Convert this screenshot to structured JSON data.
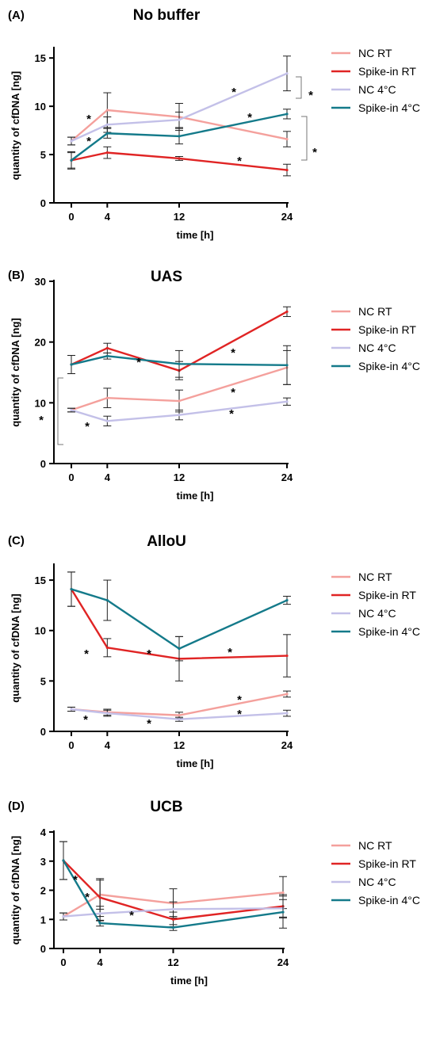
{
  "chart_data": [
    {
      "type": "line",
      "panel": "(A)",
      "title": "No buffer",
      "xlabel": "time [h]",
      "ylabel": "quantity of cfDNA [ng]",
      "x": [
        0,
        4,
        12,
        24
      ],
      "xticks": [
        "0",
        "4",
        "12",
        "24"
      ],
      "ylim": [
        0,
        16
      ],
      "yticks": [
        "0",
        "5",
        "10",
        "15"
      ],
      "grid": false,
      "legend_position": "right",
      "series": [
        {
          "name": "NC RT",
          "color": "#f4a09c",
          "values": [
            6.4,
            9.6,
            8.9,
            6.6
          ],
          "errors": [
            0.4,
            1.8,
            1.4,
            0.8
          ]
        },
        {
          "name": "Spike-in RT",
          "color": "#e02424",
          "values": [
            4.4,
            5.2,
            4.6,
            3.4
          ],
          "errors": [
            0.8,
            0.6,
            0.2,
            0.6
          ]
        },
        {
          "name": "NC 4°C",
          "color": "#c3c0e8",
          "values": [
            6.4,
            8.1,
            8.6,
            13.4
          ],
          "errors": [
            0.4,
            0.8,
            0.8,
            1.8
          ]
        },
        {
          "name": "Spike-in 4°C",
          "color": "#147a8a",
          "values": [
            4.4,
            7.2,
            6.9,
            9.2
          ],
          "errors": [
            0.9,
            0.5,
            0.8,
            0.5
          ]
        }
      ],
      "annotations": [
        "*",
        "*",
        "*",
        "*",
        "*",
        "*",
        "*"
      ]
    },
    {
      "type": "line",
      "panel": "(B)",
      "title": "UAS",
      "xlabel": "time [h]",
      "ylabel": "quantity of cfDNA [ng]",
      "x": [
        0,
        4,
        12,
        24
      ],
      "xticks": [
        "0",
        "4",
        "12",
        "24"
      ],
      "ylim": [
        0,
        30
      ],
      "yticks": [
        "0",
        "10",
        "20",
        "30"
      ],
      "grid": false,
      "legend_position": "right",
      "series": [
        {
          "name": "NC RT",
          "color": "#f4a09c",
          "values": [
            8.8,
            10.8,
            10.3,
            15.8
          ],
          "errors": [
            0.3,
            1.6,
            1.8,
            2.8
          ]
        },
        {
          "name": "Spike-in RT",
          "color": "#e02424",
          "values": [
            16.3,
            19.0,
            15.3,
            25.0
          ],
          "errors": [
            1.5,
            0.8,
            1.5,
            0.8
          ]
        },
        {
          "name": "NC 4°C",
          "color": "#c3c0e8",
          "values": [
            8.8,
            7.0,
            8.0,
            10.2
          ],
          "errors": [
            0.3,
            0.8,
            0.8,
            0.6
          ]
        },
        {
          "name": "Spike-in 4°C",
          "color": "#147a8a",
          "values": [
            16.3,
            17.7,
            16.4,
            16.2
          ],
          "errors": [
            1.5,
            0.5,
            2.2,
            3.2
          ]
        }
      ],
      "annotations": [
        "*",
        "*",
        "*",
        "*",
        "*",
        "*"
      ]
    },
    {
      "type": "line",
      "panel": "(C)",
      "title": "AlloU",
      "xlabel": "time [h]",
      "ylabel": "quantity of cfDNA [ng]",
      "x": [
        0,
        4,
        12,
        24
      ],
      "xticks": [
        "0",
        "4",
        "12",
        "24"
      ],
      "ylim": [
        0,
        16.5
      ],
      "yticks": [
        "0",
        "5",
        "10",
        "15"
      ],
      "grid": false,
      "legend_position": "right",
      "series": [
        {
          "name": "NC RT",
          "color": "#f4a09c",
          "values": [
            2.2,
            1.9,
            1.6,
            3.7
          ],
          "errors": [
            0.2,
            0.3,
            0.3,
            0.3
          ]
        },
        {
          "name": "Spike-in RT",
          "color": "#e02424",
          "values": [
            14.1,
            8.3,
            7.2,
            7.5
          ],
          "errors": [
            1.7,
            0.9,
            2.2,
            2.1
          ]
        },
        {
          "name": "NC 4°C",
          "color": "#c3c0e8",
          "values": [
            2.2,
            1.8,
            1.2,
            1.8
          ],
          "errors": [
            0.2,
            0.3,
            0.2,
            0.3
          ]
        },
        {
          "name": "Spike-in  4°C",
          "color": "#147a8a",
          "values": [
            14.1,
            13.0,
            8.2,
            13.0
          ],
          "errors": [
            1.7,
            2.0,
            1.2,
            0.4
          ]
        }
      ],
      "annotations": [
        "*",
        "*",
        "*",
        "*",
        "*",
        "*",
        "*"
      ]
    },
    {
      "type": "line",
      "panel": "(D)",
      "title": "UCB",
      "xlabel": "time [h]",
      "ylabel": "quantity of cfDNA [ng]",
      "x": [
        0,
        4,
        12,
        24
      ],
      "xticks": [
        "0",
        "4",
        "12",
        "24"
      ],
      "ylim": [
        0,
        4
      ],
      "yticks": [
        "0",
        "1",
        "2",
        "3",
        "4"
      ],
      "grid": false,
      "legend_position": "right",
      "series": [
        {
          "name": "NC RT",
          "color": "#f4a09c",
          "values": [
            1.1,
            1.85,
            1.55,
            1.92
          ],
          "errors": [
            0.12,
            0.5,
            0.5,
            0.55
          ]
        },
        {
          "name": "Spike-in RT",
          "color": "#e02424",
          "values": [
            3.02,
            1.75,
            1.0,
            1.45
          ],
          "errors": [
            0.65,
            0.65,
            0.25,
            0.4
          ]
        },
        {
          "name": "NC 4°C",
          "color": "#c3c0e8",
          "values": [
            1.1,
            1.2,
            1.35,
            1.38
          ],
          "errors": [
            0.12,
            0.25,
            0.25,
            0.3
          ]
        },
        {
          "name": "Spike-in  4°C",
          "color": "#147a8a",
          "values": [
            3.02,
            0.87,
            0.72,
            1.25
          ],
          "errors": [
            0.65,
            0.1,
            0.1,
            0.55
          ]
        }
      ],
      "annotations": [
        "*",
        "*",
        "*"
      ]
    }
  ]
}
